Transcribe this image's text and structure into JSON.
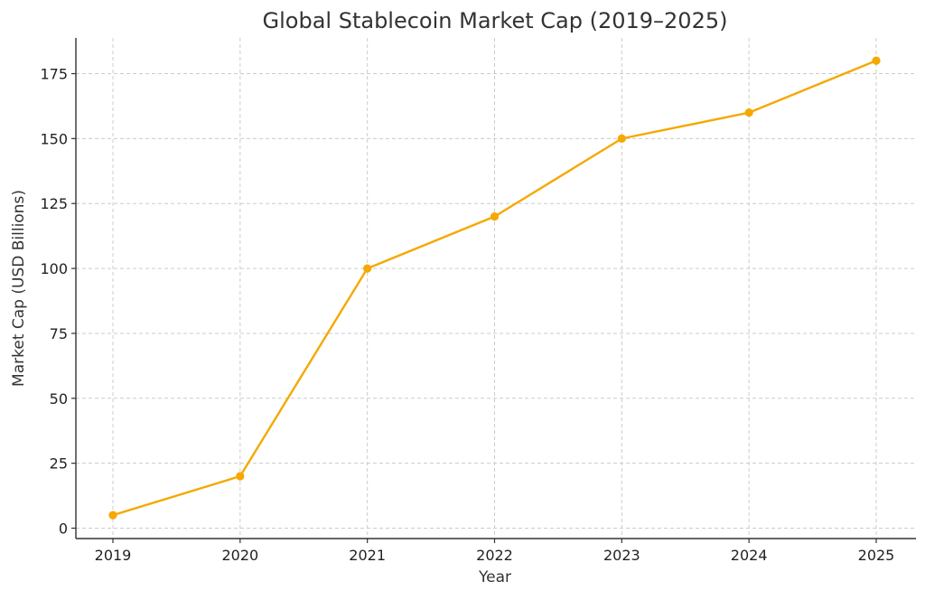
{
  "chart_data": {
    "type": "line",
    "title": "Global Stablecoin Market Cap (2019–2025)",
    "xlabel": "Year",
    "ylabel": "Market Cap (USD Billions)",
    "categories": [
      "2019",
      "2020",
      "2021",
      "2022",
      "2023",
      "2024",
      "2025"
    ],
    "series": [
      {
        "values": [
          5,
          20,
          100,
          120,
          150,
          160,
          180
        ],
        "color": "#F5A800",
        "marker": "circle"
      }
    ],
    "yticks": [
      0,
      25,
      50,
      75,
      100,
      125,
      150,
      175
    ],
    "ylim": [
      -4,
      188.75
    ],
    "grid": true,
    "legend": "none"
  }
}
